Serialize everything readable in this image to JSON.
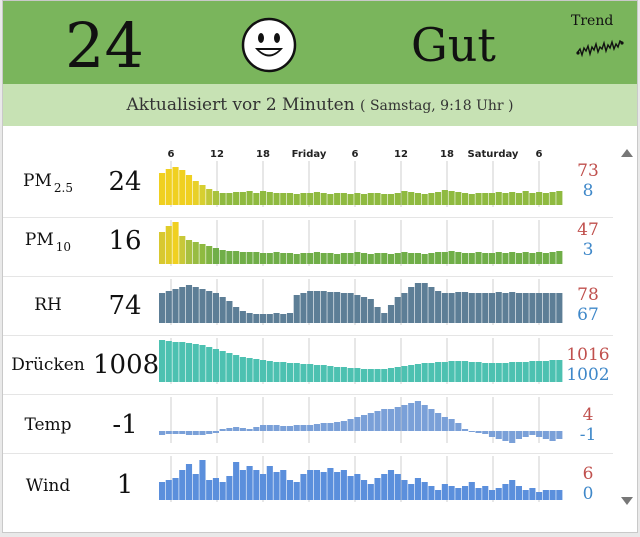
{
  "header": {
    "aqi_value": "24",
    "status": "Gut",
    "trend_label": "Trend",
    "face_icon": "smiley-face-icon",
    "color": "#7ab55c"
  },
  "update_bar": {
    "text": "Aktualisiert vor 2 Minuten",
    "timestamp": "( Samstag, 9:18 Uhr )",
    "color": "#c7e2b4"
  },
  "time_axis": [
    "6",
    "12",
    "18",
    "Friday",
    "6",
    "12",
    "18",
    "Saturday",
    "6"
  ],
  "rows": [
    {
      "label": "PM",
      "sub": "2.5",
      "value": "24",
      "max": "73",
      "min": "8",
      "bars": [
        32,
        36,
        38,
        35,
        30,
        24,
        20,
        16,
        14,
        12,
        12,
        13,
        13,
        14,
        12,
        14,
        13,
        12,
        12,
        12,
        11,
        12,
        12,
        13,
        12,
        11,
        12,
        12,
        11,
        12,
        11,
        12,
        12,
        11,
        11,
        12,
        14,
        13,
        12,
        11,
        12,
        13,
        15,
        14,
        13,
        12,
        11,
        12,
        12,
        12,
        13,
        12,
        13,
        12,
        14,
        12,
        13,
        12,
        13,
        14
      ],
      "colors": [
        "#f0d020",
        "#f0d020",
        "#f0d020",
        "#f0d020",
        "#f0d020",
        "#e8d028",
        "#d7cf30",
        "#c0c838",
        "#a8c23c",
        "#8fba40"
      ]
    },
    {
      "label": "PM",
      "sub": "10",
      "value": "16",
      "max": "47",
      "min": "3",
      "bars": [
        32,
        38,
        42,
        28,
        24,
        22,
        20,
        18,
        16,
        14,
        13,
        13,
        12,
        12,
        12,
        11,
        11,
        12,
        11,
        11,
        10,
        11,
        11,
        12,
        11,
        11,
        10,
        11,
        11,
        12,
        11,
        10,
        11,
        11,
        10,
        11,
        12,
        11,
        11,
        10,
        11,
        12,
        12,
        13,
        12,
        11,
        11,
        12,
        11,
        11,
        12,
        11,
        12,
        11,
        12,
        11,
        12,
        11,
        12,
        13
      ],
      "colors": [
        "#d8c830",
        "#e0cc28",
        "#f0d020",
        "#c8c838",
        "#a8c040",
        "#98bc42",
        "#8fba40",
        "#80b444",
        "#70ae48"
      ]
    },
    {
      "label": "RH",
      "value": "74",
      "max": "78",
      "min": "67",
      "bars": [
        30,
        32,
        34,
        36,
        38,
        36,
        34,
        32,
        30,
        26,
        22,
        16,
        12,
        10,
        9,
        9,
        9,
        10,
        9,
        10,
        28,
        30,
        32,
        32,
        32,
        31,
        31,
        30,
        30,
        28,
        26,
        24,
        16,
        10,
        18,
        26,
        30,
        36,
        40,
        40,
        36,
        32,
        30,
        30,
        31,
        31,
        30,
        30,
        30,
        30,
        31,
        30,
        31,
        30,
        30,
        30,
        30,
        30,
        30,
        30
      ],
      "colors": [
        "#5d7e96"
      ]
    },
    {
      "label": "Drücken",
      "value": "1008",
      "max": "1016",
      "min": "1002",
      "bars": [
        42,
        41,
        40,
        40,
        39,
        38,
        37,
        35,
        33,
        31,
        29,
        27,
        25,
        24,
        23,
        22,
        21,
        20,
        20,
        19,
        19,
        18,
        18,
        17,
        17,
        16,
        15,
        15,
        14,
        14,
        13,
        13,
        13,
        13,
        14,
        15,
        16,
        17,
        18,
        19,
        19,
        20,
        20,
        21,
        21,
        21,
        20,
        20,
        19,
        19,
        19,
        19,
        20,
        20,
        20,
        21,
        21,
        21,
        22,
        22
      ],
      "colors": [
        "#4dc1b1"
      ]
    },
    {
      "label": "Temp",
      "value": "-1",
      "max": "4",
      "min": "-1",
      "bars": [
        -4,
        -3,
        -3,
        -3,
        -4,
        -4,
        -4,
        -3,
        -2,
        2,
        3,
        4,
        3,
        2,
        4,
        6,
        6,
        6,
        5,
        5,
        6,
        6,
        6,
        7,
        8,
        8,
        9,
        10,
        12,
        14,
        16,
        18,
        20,
        22,
        22,
        24,
        26,
        28,
        30,
        26,
        22,
        18,
        14,
        12,
        8,
        2,
        0,
        -2,
        -3,
        -6,
        -8,
        -10,
        -12,
        -8,
        -6,
        -4,
        -6,
        -8,
        -10,
        -8
      ],
      "colors": [
        "#7aa0d8"
      ]
    },
    {
      "label": "Wind",
      "value": "1",
      "max": "6",
      "min": "0",
      "bars": [
        18,
        20,
        22,
        30,
        36,
        26,
        40,
        20,
        22,
        18,
        24,
        38,
        30,
        34,
        30,
        26,
        34,
        28,
        30,
        20,
        18,
        26,
        30,
        30,
        28,
        32,
        28,
        30,
        24,
        26,
        20,
        16,
        22,
        26,
        30,
        26,
        20,
        16,
        22,
        18,
        14,
        10,
        16,
        14,
        12,
        14,
        18,
        12,
        14,
        10,
        12,
        16,
        20,
        14,
        10,
        12,
        8,
        10,
        10,
        10
      ],
      "colors": [
        "#5b8fdc"
      ]
    }
  ]
}
